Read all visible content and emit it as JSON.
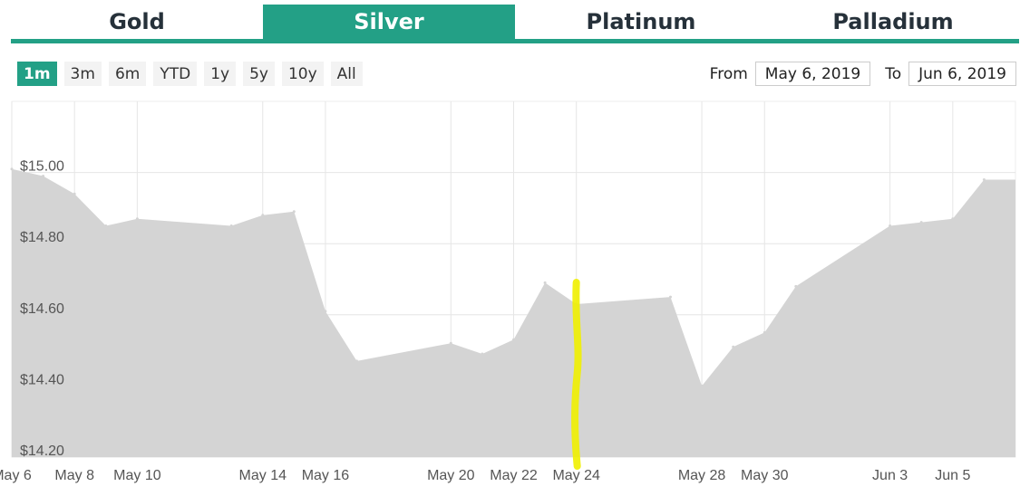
{
  "tabs": [
    {
      "label": "Gold",
      "active": false
    },
    {
      "label": "Silver",
      "active": true
    },
    {
      "label": "Platinum",
      "active": false
    },
    {
      "label": "Palladium",
      "active": false
    }
  ],
  "range_buttons": [
    {
      "label": "1m",
      "active": true
    },
    {
      "label": "3m",
      "active": false
    },
    {
      "label": "6m",
      "active": false
    },
    {
      "label": "YTD",
      "active": false
    },
    {
      "label": "1y",
      "active": false
    },
    {
      "label": "5y",
      "active": false
    },
    {
      "label": "10y",
      "active": false
    },
    {
      "label": "All",
      "active": false
    }
  ],
  "date_range": {
    "from_label": "From",
    "from_value": "May 6, 2019",
    "to_label": "To",
    "to_value": "Jun 6, 2019"
  },
  "colors": {
    "accent": "#23a086",
    "area_fill": "#d4d4d4",
    "grid": "#e6e6e6",
    "highlight": "#f0f000"
  },
  "chart_data": {
    "type": "area",
    "title": "",
    "xlabel": "",
    "ylabel": "",
    "ylim": [
      14.2,
      15.2
    ],
    "xlim": [
      "2019-05-06",
      "2019-06-07"
    ],
    "grid": true,
    "yticks": [
      {
        "value": 15.0,
        "label": "$15.00"
      },
      {
        "value": 14.8,
        "label": "$14.80"
      },
      {
        "value": 14.6,
        "label": "$14.60"
      },
      {
        "value": 14.4,
        "label": "$14.40"
      },
      {
        "value": 14.2,
        "label": "$14.20"
      }
    ],
    "xticks": [
      {
        "date": "2019-05-06",
        "label": "May 6"
      },
      {
        "date": "2019-05-08",
        "label": "May 8"
      },
      {
        "date": "2019-05-10",
        "label": "May 10"
      },
      {
        "date": "2019-05-14",
        "label": "May 14"
      },
      {
        "date": "2019-05-16",
        "label": "May 16"
      },
      {
        "date": "2019-05-20",
        "label": "May 20"
      },
      {
        "date": "2019-05-22",
        "label": "May 22"
      },
      {
        "date": "2019-05-24",
        "label": "May 24"
      },
      {
        "date": "2019-05-28",
        "label": "May 28"
      },
      {
        "date": "2019-05-30",
        "label": "May 30"
      },
      {
        "date": "2019-06-03",
        "label": "Jun 3"
      },
      {
        "date": "2019-06-05",
        "label": "Jun 5"
      }
    ],
    "series": [
      {
        "points": [
          {
            "x": "2019-05-06",
            "y": 15.01
          },
          {
            "x": "2019-05-07",
            "y": 14.99
          },
          {
            "x": "2019-05-08",
            "y": 14.94
          },
          {
            "x": "2019-05-09",
            "y": 14.85
          },
          {
            "x": "2019-05-10",
            "y": 14.87
          },
          {
            "x": "2019-05-13",
            "y": 14.85
          },
          {
            "x": "2019-05-14",
            "y": 14.88
          },
          {
            "x": "2019-05-15",
            "y": 14.89
          },
          {
            "x": "2019-05-16",
            "y": 14.61
          },
          {
            "x": "2019-05-17",
            "y": 14.47
          },
          {
            "x": "2019-05-20",
            "y": 14.52
          },
          {
            "x": "2019-05-21",
            "y": 14.49
          },
          {
            "x": "2019-05-22",
            "y": 14.53
          },
          {
            "x": "2019-05-23",
            "y": 14.69
          },
          {
            "x": "2019-05-24",
            "y": 14.63
          },
          {
            "x": "2019-05-27",
            "y": 14.65
          },
          {
            "x": "2019-05-28",
            "y": 14.4
          },
          {
            "x": "2019-05-29",
            "y": 14.51
          },
          {
            "x": "2019-05-30",
            "y": 14.55
          },
          {
            "x": "2019-05-31",
            "y": 14.68
          },
          {
            "x": "2019-06-03",
            "y": 14.85
          },
          {
            "x": "2019-06-04",
            "y": 14.86
          },
          {
            "x": "2019-06-05",
            "y": 14.87
          },
          {
            "x": "2019-06-06",
            "y": 14.98
          }
        ]
      }
    ],
    "highlight_marker": {
      "x": "2019-05-24"
    }
  }
}
